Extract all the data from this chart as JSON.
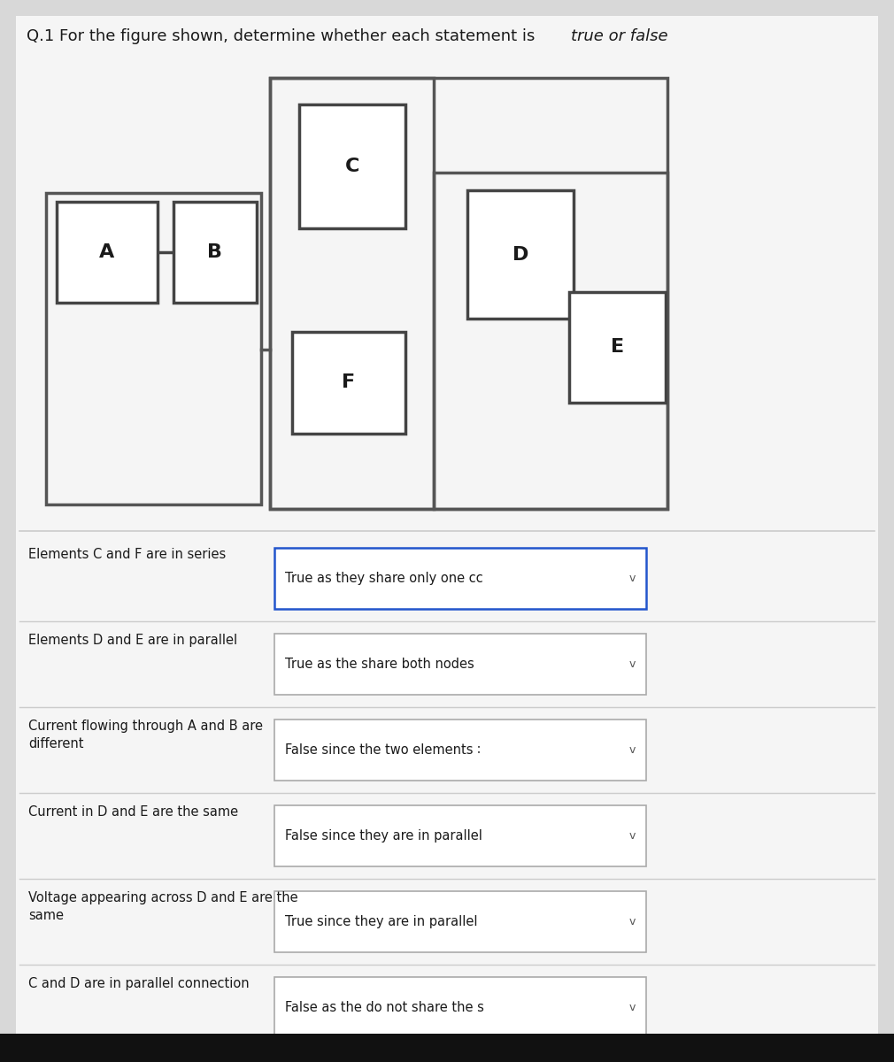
{
  "title_normal": "Q.1 For the figure shown, determine whether each statement is ",
  "title_italic": "true or false",
  "bg_color": "#d8d8d8",
  "panel_color": "#f5f5f5",
  "statements": [
    {
      "question": "Elements C and F are in series",
      "answer": "True as they share only one cc",
      "highlighted": true
    },
    {
      "question": "Elements D and E are in parallel",
      "answer": "True as the share both nodes",
      "highlighted": false
    },
    {
      "question": "Current flowing through A and B are\ndifferent",
      "answer": "False since the two elements ∶",
      "highlighted": false
    },
    {
      "question": "Current in D and E are the same",
      "answer": "False since they are in parallel",
      "highlighted": false
    },
    {
      "question": "Voltage appearing across D and E are the\nsame",
      "answer": "True since they are in parallel",
      "highlighted": false
    },
    {
      "question": "C and D are in parallel connection",
      "answer": "False as the do not share the s",
      "highlighted": false
    }
  ]
}
